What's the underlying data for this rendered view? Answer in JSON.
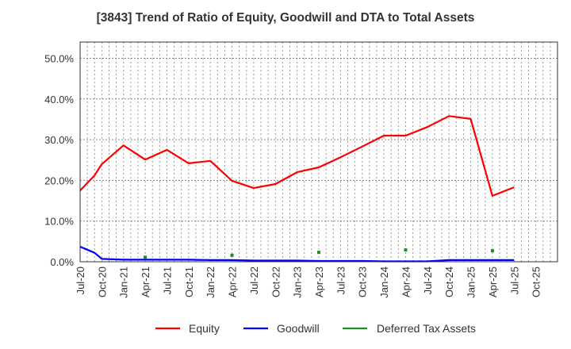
{
  "chart_data": {
    "type": "line",
    "title": "[3843]  Trend of Ratio of Equity, Goodwill and DTA to Total Assets",
    "xlabel": "",
    "ylabel": "",
    "ylim": [
      0,
      54
    ],
    "yticks": [
      0,
      10,
      20,
      30,
      40,
      50
    ],
    "ytick_labels": [
      "0.0%",
      "10.0%",
      "20.0%",
      "30.0%",
      "40.0%",
      "50.0%"
    ],
    "xlim_months": [
      0,
      66
    ],
    "xticks_labels": [
      "Jul-20",
      "Oct-20",
      "Jan-21",
      "Apr-21",
      "Jul-21",
      "Oct-21",
      "Jan-22",
      "Apr-22",
      "Jul-22",
      "Oct-22",
      "Jan-23",
      "Apr-23",
      "Jul-23",
      "Oct-23",
      "Jan-24",
      "Apr-24",
      "Jul-24",
      "Oct-24",
      "Jan-25",
      "Apr-25",
      "Jul-25",
      "Oct-25"
    ],
    "grid": true,
    "legend_position": "bottom",
    "series": [
      {
        "name": "Equity",
        "color": "#ff0000",
        "style": "line",
        "x_months": [
          0,
          2,
          3,
          6,
          9,
          12,
          15,
          18,
          21,
          24,
          27,
          30,
          33,
          36,
          39,
          42,
          45,
          48,
          51,
          54,
          57,
          60
        ],
        "values": [
          17.5,
          21.2,
          24.0,
          28.6,
          25.1,
          27.5,
          24.2,
          24.8,
          19.9,
          18.1,
          19.1,
          22.0,
          23.2,
          25.7,
          28.3,
          31.0,
          31.0,
          33.1,
          35.8,
          35.1,
          16.2,
          18.3
        ]
      },
      {
        "name": "Goodwill",
        "color": "#0000ff",
        "style": "line",
        "x_months": [
          0,
          2,
          3,
          6,
          9,
          12,
          15,
          18,
          21,
          24,
          27,
          30,
          33,
          36,
          39,
          42,
          45,
          48,
          51,
          54,
          57,
          60
        ],
        "values": [
          3.7,
          2.2,
          0.7,
          0.5,
          0.5,
          0.5,
          0.5,
          0.4,
          0.4,
          0.3,
          0.3,
          0.3,
          0.2,
          0.2,
          0.2,
          0.1,
          0.1,
          0.1,
          0.4,
          0.4,
          0.4,
          0.4
        ]
      },
      {
        "name": "Deferred Tax Assets",
        "color": "#228b22",
        "style": "markers",
        "x_months": [
          9,
          21,
          33,
          45,
          57
        ],
        "values": [
          1.1,
          1.6,
          2.3,
          2.9,
          2.7
        ]
      }
    ]
  }
}
